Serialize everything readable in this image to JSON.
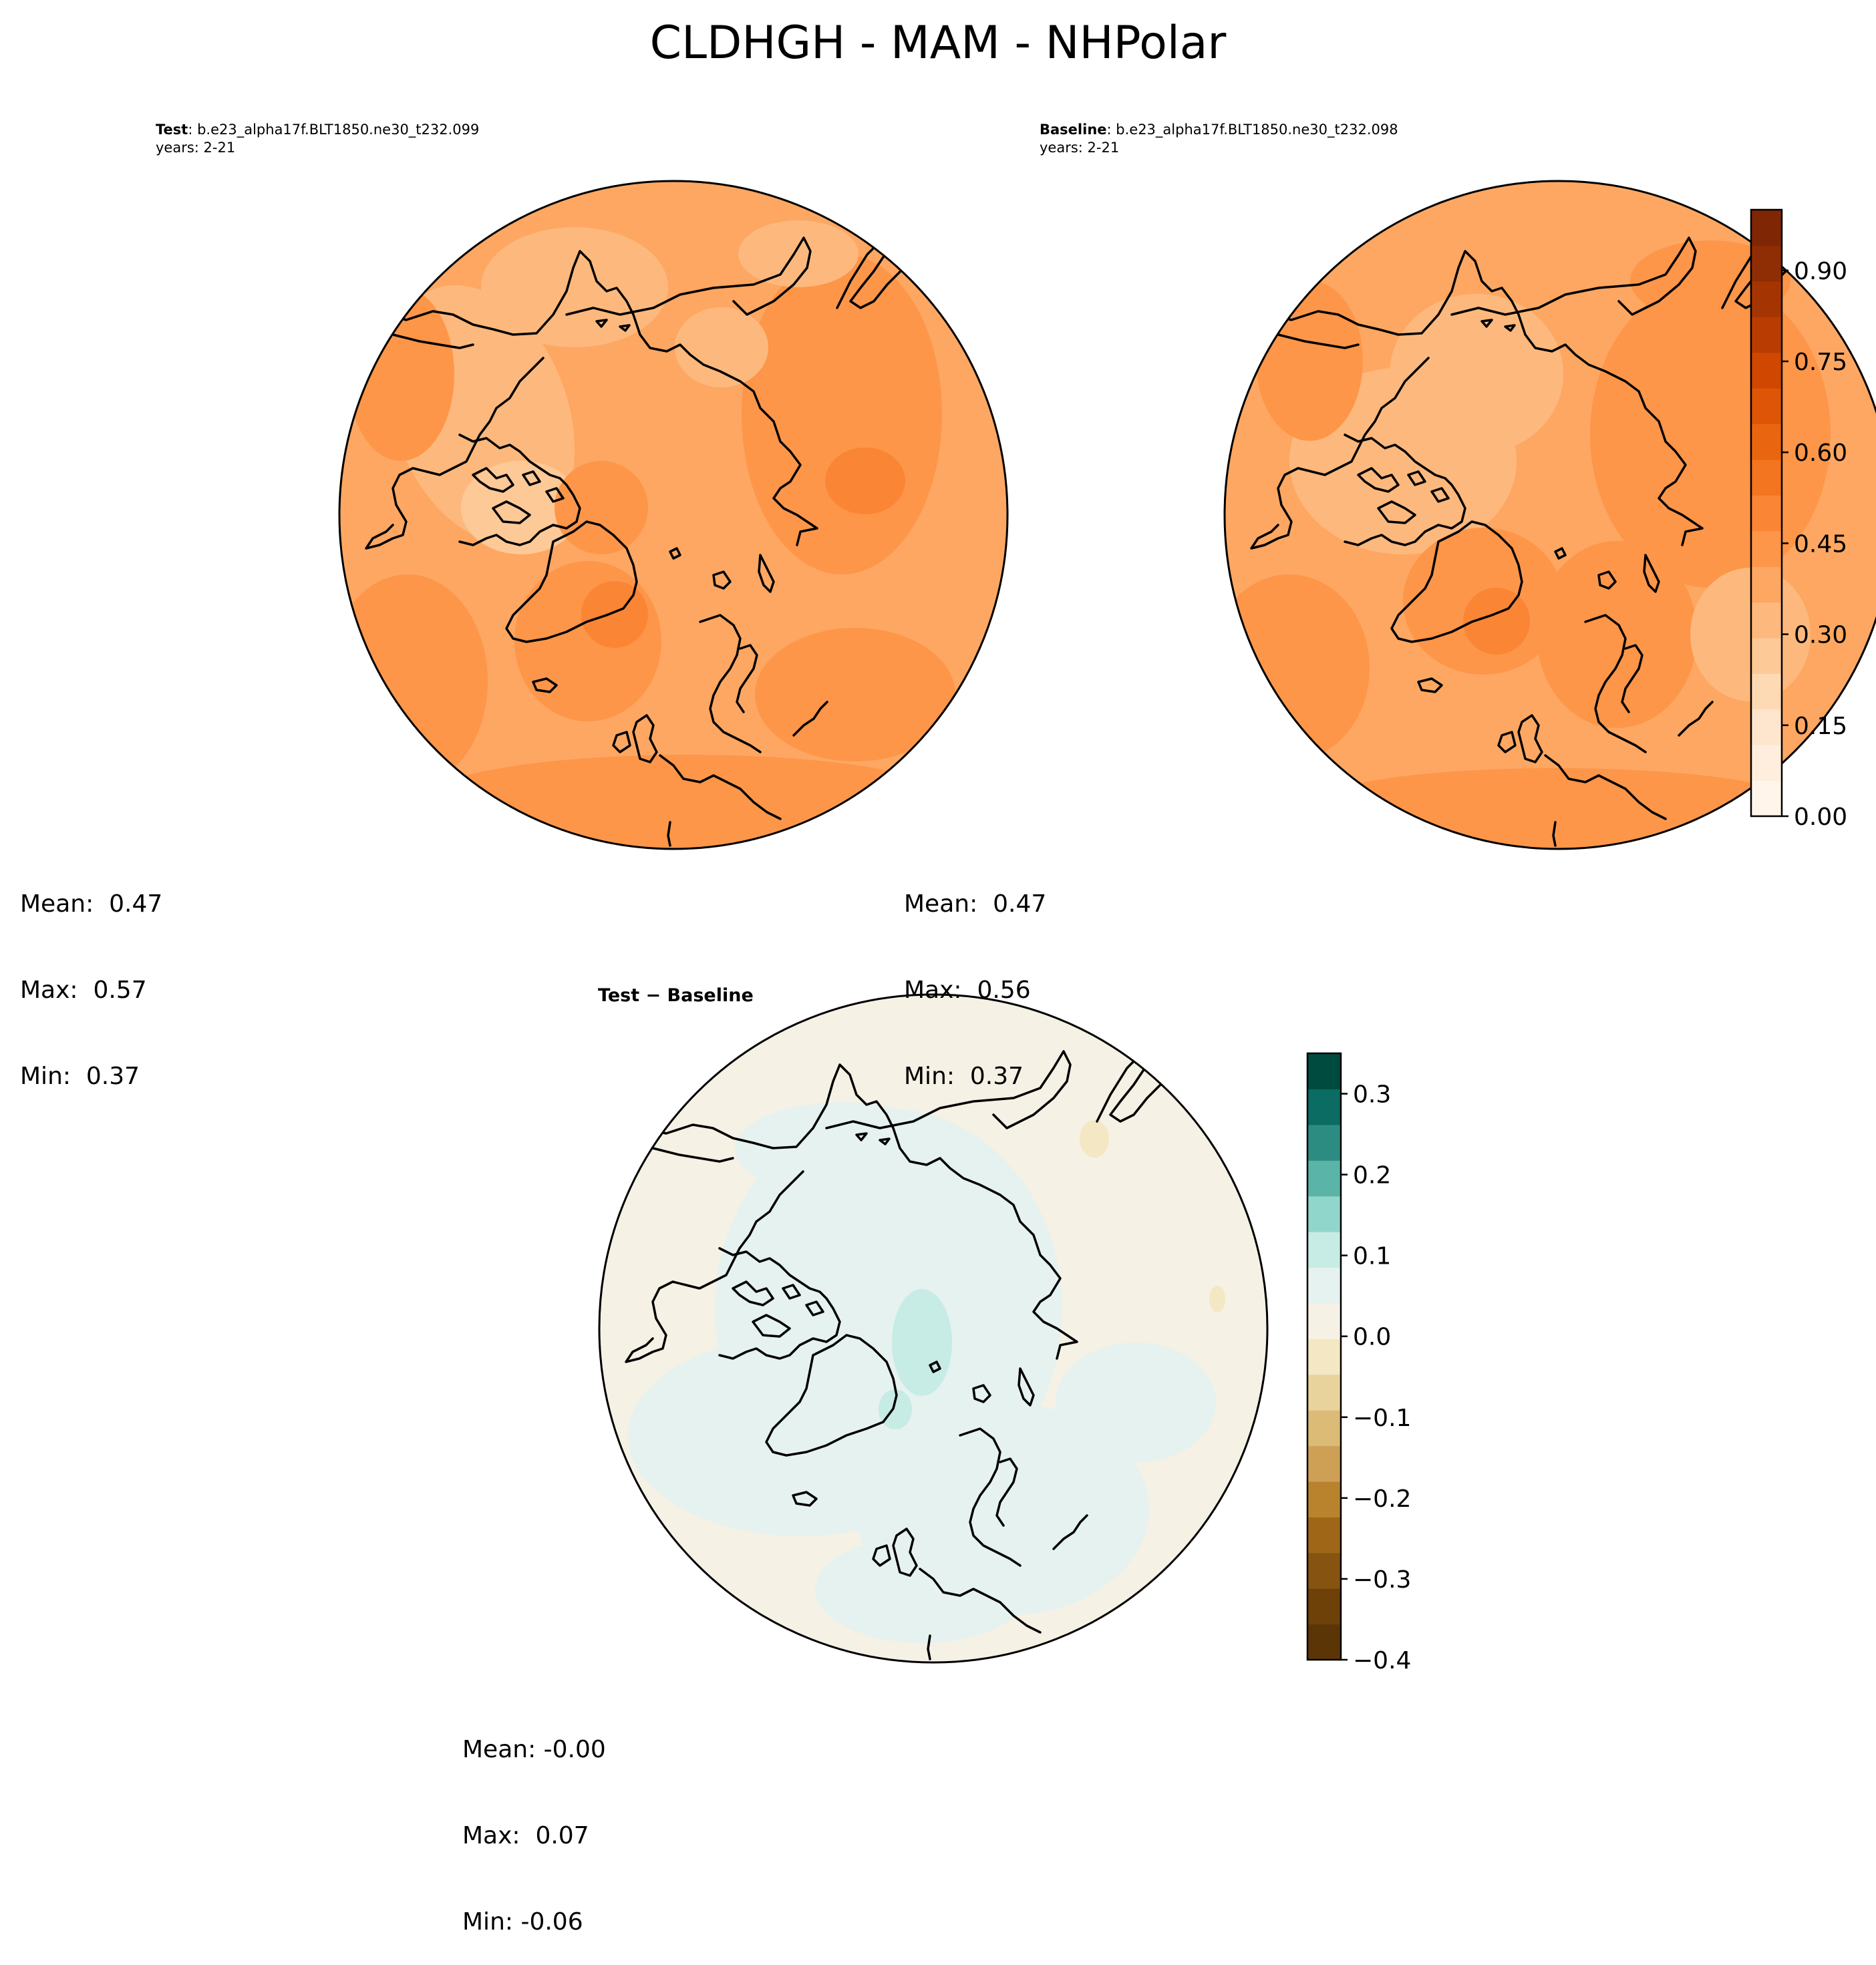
{
  "figure": {
    "title": "CLDHGH - MAM - NHPolar"
  },
  "panels": {
    "test": {
      "label": "Test",
      "case": ": b.e23_alpha17f.BLT1850.ne30_t232.099",
      "years": "years: 2-21",
      "mean": "Mean:  0.47",
      "max": "Max:  0.57",
      "min": "Min:  0.37"
    },
    "baseline": {
      "label": "Baseline",
      "case": ": b.e23_alpha17f.BLT1850.ne30_t232.098",
      "years": "years: 2-21",
      "mean": "Mean:  0.47",
      "max": "Max:  0.56",
      "min": "Min:  0.37"
    },
    "diff": {
      "title": "Test − Baseline",
      "mean": "Mean: -0.00",
      "max": "Max:  0.07",
      "min": "Min: -0.06"
    }
  },
  "colorbars": {
    "main": {
      "ticks": [
        "0.00",
        "0.15",
        "0.30",
        "0.45",
        "0.60",
        "0.75",
        "0.90"
      ],
      "tick_values": [
        0.0,
        0.15,
        0.3,
        0.45,
        0.6,
        0.75,
        0.9
      ],
      "range": [
        0.0,
        1.0
      ],
      "colors": [
        "#fff5eb",
        "#ffeedd",
        "#fee6ce",
        "#fdd9b4",
        "#fdc997",
        "#fdb97d",
        "#fda762",
        "#fd9649",
        "#fa8534",
        "#f3751f",
        "#ea6510",
        "#df5507",
        "#cf4701",
        "#b93d02",
        "#a43502",
        "#8f2d04",
        "#7f2704"
      ]
    },
    "diff": {
      "ticks": [
        "0.3",
        "0.2",
        "0.1",
        "0.0",
        "−0.1",
        "−0.2",
        "−0.3",
        "−0.4"
      ],
      "tick_values": [
        0.3,
        0.2,
        0.1,
        0.0,
        -0.1,
        -0.2,
        -0.3,
        -0.4
      ],
      "range": [
        -0.4,
        0.35
      ],
      "colors": [
        "#5c3506",
        "#6e4108",
        "#865310",
        "#a06617",
        "#b9822d",
        "#cda056",
        "#dcbb76",
        "#e9d39d",
        "#f4e7c3",
        "#f5f1e4",
        "#e6f2ef",
        "#c7ebe5",
        "#91d6cb",
        "#5bb4a8",
        "#2d8c81",
        "#0a6c62",
        "#004b3f"
      ]
    }
  },
  "map_data": {
    "projection": "North polar stereographic",
    "region": "NHPolar",
    "variable": "CLDHGH",
    "season": "MAM",
    "main_cmap": "Oranges",
    "diff_cmap": "BrBG"
  }
}
